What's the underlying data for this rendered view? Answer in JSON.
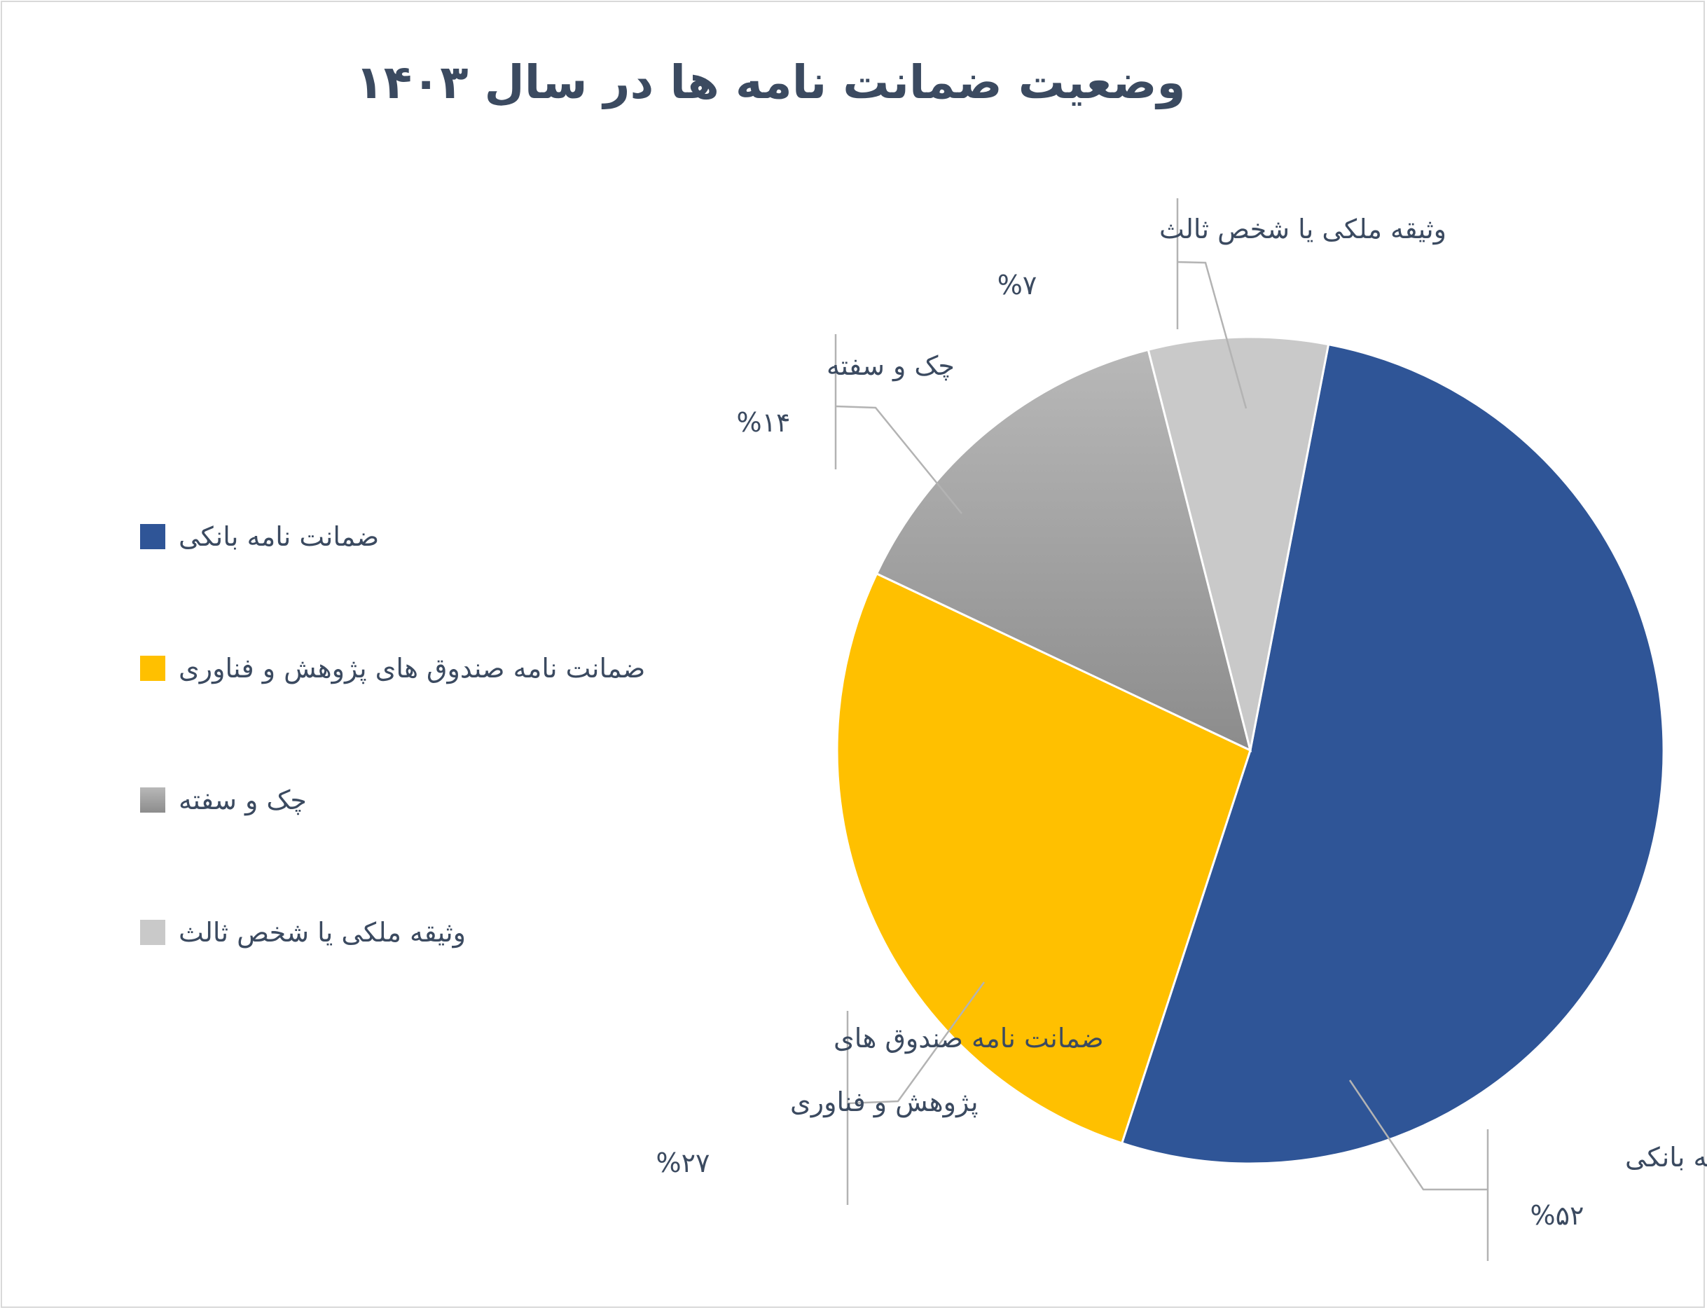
{
  "chart_data": {
    "type": "pie",
    "title": "وضعیت ضمانت نامه ها در سال ۱۴۰۳",
    "slices": [
      {
        "label": "ضمانت نامه  بانکی",
        "value": 52,
        "pct_label": "%۵۲",
        "color": "#2f5597",
        "data_label_lines": [
          "ضمانت نامه  بانکی"
        ]
      },
      {
        "label": "ضمانت نامه  صندوق های پژوهش و فناوری",
        "value": 27,
        "pct_label": "%۲۷",
        "color": "#ffc000",
        "data_label_lines": [
          "ضمانت نامه  صندوق های",
          "پژوهش و فناوری"
        ]
      },
      {
        "label": "چک و سفته",
        "value": 14,
        "pct_label": "%۱۴",
        "color": "#a6a6a6",
        "gradient": [
          "#b8b8b8",
          "#8c8c8c"
        ],
        "data_label_lines": [
          "چک و سفته"
        ]
      },
      {
        "label": "وثیقه ملکی یا شخص ثالث",
        "value": 7,
        "pct_label": "%۷",
        "color": "#c9c9c9",
        "data_label_lines": [
          "وثیقه ملکی یا شخص ثالث"
        ]
      }
    ],
    "legend_position": "left"
  }
}
